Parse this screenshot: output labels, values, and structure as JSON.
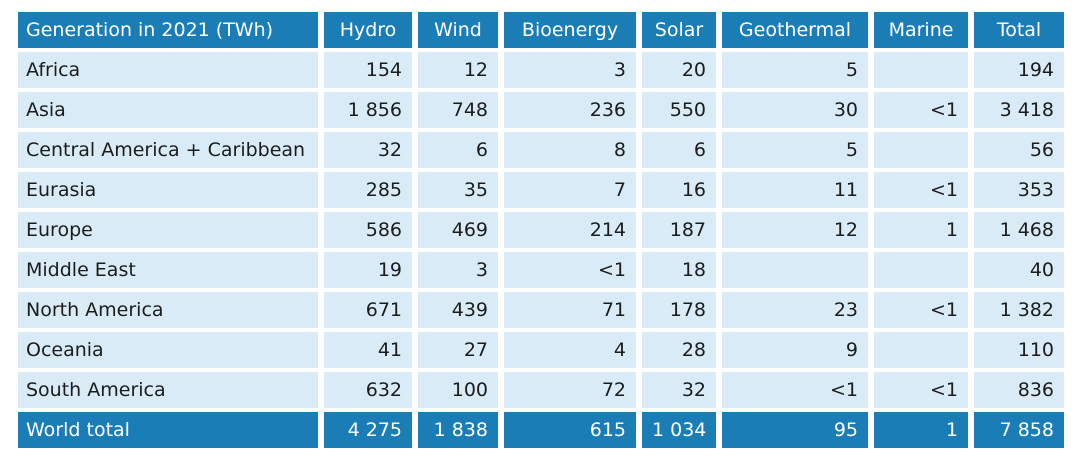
{
  "table": {
    "header": [
      "Generation in 2021 (TWh)",
      "Hydro",
      "Wind",
      "Bioenergy",
      "Solar",
      "Geothermal",
      "Marine",
      "Total"
    ],
    "rows": [
      [
        "Africa",
        "154",
        "12",
        "3",
        "20",
        "5",
        null,
        "194"
      ],
      [
        "Asia",
        "1 856",
        "748",
        "236",
        "550",
        "30",
        "<1",
        "3 418"
      ],
      [
        "Central America + Caribbean",
        "32",
        "6",
        "8",
        "6",
        "5",
        null,
        "56"
      ],
      [
        "Eurasia",
        "285",
        "35",
        "7",
        "16",
        "11",
        "<1",
        "353"
      ],
      [
        "Europe",
        "586",
        "469",
        "214",
        "187",
        "12",
        "1",
        "1 468"
      ],
      [
        "Middle East",
        "19",
        "3",
        "<1",
        "18",
        null,
        null,
        "40"
      ],
      [
        "North America",
        "671",
        "439",
        "71",
        "178",
        "23",
        "<1",
        "1 382"
      ],
      [
        "Oceania",
        "41",
        "27",
        "4",
        "28",
        "9",
        null,
        "110"
      ],
      [
        "South America",
        "632",
        "100",
        "72",
        "32",
        "<1",
        "<1",
        "836"
      ]
    ],
    "footer": [
      "World total",
      "4 275",
      "1 838",
      "615",
      "1 034",
      "95",
      "1",
      "7 858"
    ]
  }
}
